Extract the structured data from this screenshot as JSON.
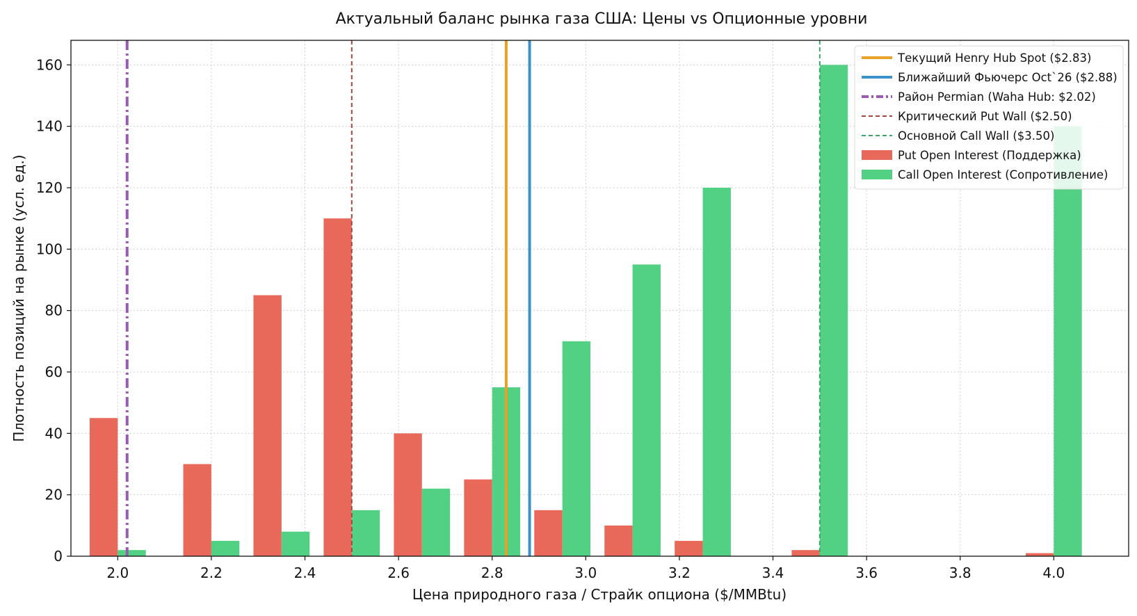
{
  "chart_data": {
    "type": "bar",
    "title": "Актуальный баланс рынка газа США: Цены vs Опционные уровни",
    "xlabel": "Цена природного газа / Страйк опциона ($/MMBtu)",
    "ylabel": "Плотность позиций на рынке (усл. ед.)",
    "xlim": [
      1.9,
      4.16
    ],
    "ylim": [
      0,
      168
    ],
    "x_ticks": [
      "2.0",
      "2.2",
      "2.4",
      "2.6",
      "2.8",
      "3.0",
      "3.2",
      "3.4",
      "3.6",
      "3.8",
      "4.0"
    ],
    "x_tick_values": [
      2.0,
      2.2,
      2.4,
      2.6,
      2.8,
      3.0,
      3.2,
      3.4,
      3.6,
      3.8,
      4.0
    ],
    "y_ticks": [
      "0",
      "20",
      "40",
      "60",
      "80",
      "100",
      "120",
      "140",
      "160"
    ],
    "y_tick_values": [
      0,
      20,
      40,
      60,
      80,
      100,
      120,
      140,
      160
    ],
    "bar_width": 0.06,
    "grid": true,
    "legend_position": "top-right",
    "strikes": [
      2.0,
      2.2,
      2.35,
      2.5,
      2.65,
      2.8,
      2.95,
      3.1,
      3.25,
      3.5,
      4.0
    ],
    "series": [
      {
        "name": "Put Open Interest (Поддержка)",
        "color": "#e8695a",
        "offset": -1,
        "values": [
          45,
          30,
          85,
          110,
          40,
          25,
          15,
          10,
          5,
          2,
          1
        ]
      },
      {
        "name": "Call Open Interest (Сопротивление)",
        "color": "#52d184",
        "offset": 1,
        "values": [
          2,
          5,
          8,
          15,
          22,
          55,
          70,
          95,
          120,
          160,
          140
        ]
      }
    ],
    "lines": [
      {
        "name": "Текущий Henry Hub Spot ($2.83)",
        "x": 2.83,
        "color": "#e8a126",
        "style": "solid"
      },
      {
        "name": "Ближайший Фьючерс Oct`26 ($2.88)",
        "x": 2.88,
        "color": "#3a92c8",
        "style": "solid"
      },
      {
        "name": "Район Permian (Waha Hub: $2.02)",
        "x": 2.02,
        "color": "#9a5ab0",
        "style": "dashdot"
      },
      {
        "name": "Критический Put Wall ($2.50)",
        "x": 2.5,
        "color": "#a94540",
        "style": "dashed"
      },
      {
        "name": "Основной Call Wall ($3.50)",
        "x": 3.5,
        "color": "#3da36a",
        "style": "dashed"
      }
    ]
  }
}
